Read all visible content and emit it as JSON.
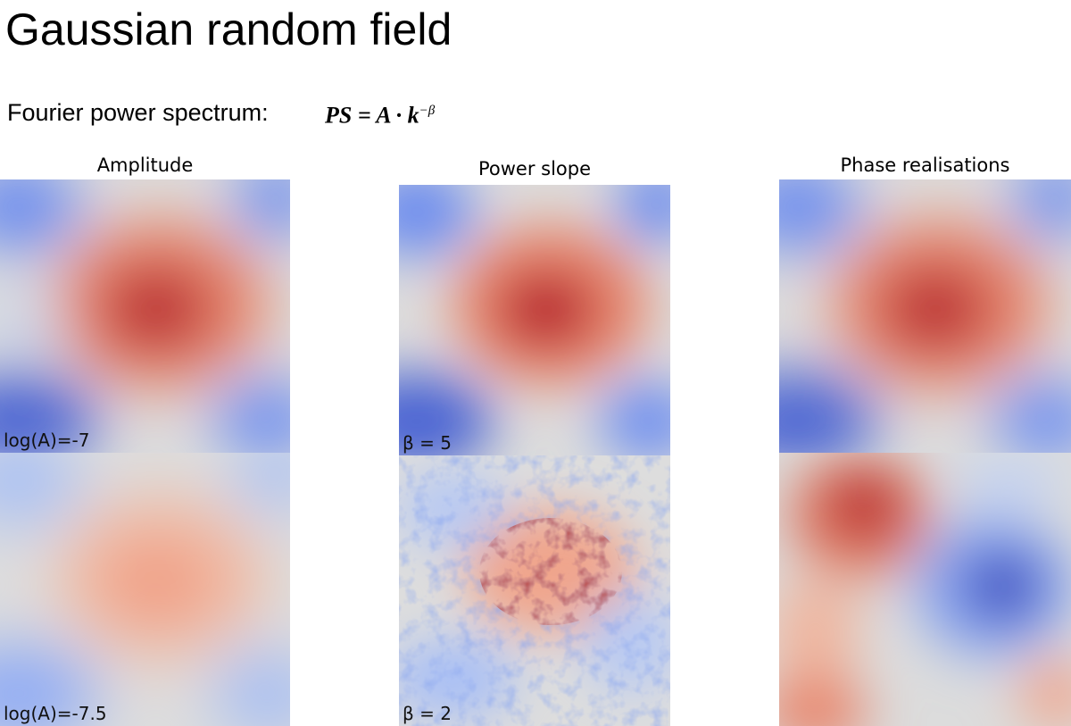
{
  "title": "Gaussian random field",
  "subtitle": "Fourier power spectrum:",
  "formula": {
    "lhs": "PS = A · k",
    "exponent": "−β"
  },
  "columns": [
    {
      "heading": "Amplitude",
      "panels": [
        {
          "label": "log(A)=-7"
        },
        {
          "label": "log(A)=-7.5"
        }
      ]
    },
    {
      "heading": "Power slope",
      "panels": [
        {
          "label": "β = 5"
        },
        {
          "label": "β = 2"
        }
      ]
    },
    {
      "heading": "Phase realisations",
      "panels": [
        {
          "label": ""
        },
        {
          "label": ""
        }
      ]
    }
  ],
  "colormap": {
    "low": "#3b4cc0",
    "mid": "#dddddd",
    "high": "#b40426"
  }
}
